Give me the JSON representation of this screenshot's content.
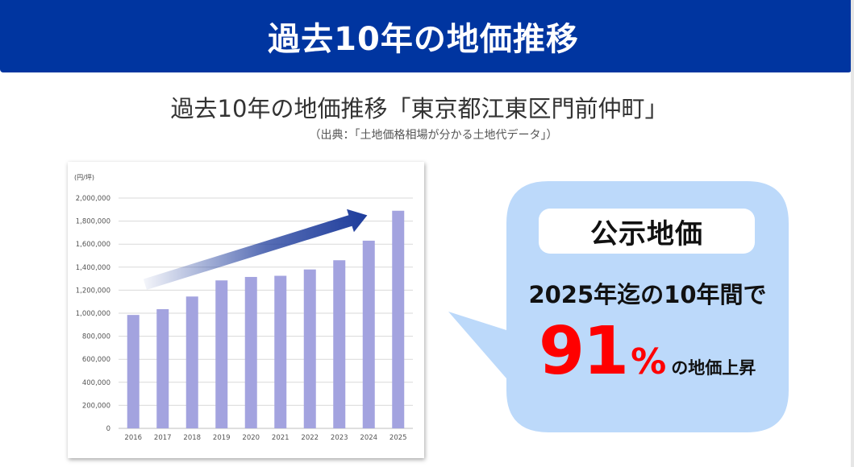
{
  "header": {
    "title": "過去10年の地価推移"
  },
  "subtitle": "過去10年の地価推移「東京都江東区門前仲町」",
  "source": "（出典：「土地価格相場が分かる土地代データ」）",
  "chart_data": {
    "type": "bar",
    "unit_label": "(円/坪)",
    "categories": [
      "2016",
      "2017",
      "2018",
      "2019",
      "2020",
      "2021",
      "2022",
      "2023",
      "2024",
      "2025"
    ],
    "values": [
      985000,
      1035000,
      1145000,
      1285000,
      1315000,
      1325000,
      1380000,
      1460000,
      1630000,
      1890000
    ],
    "ylim": [
      0,
      2000000
    ],
    "yticks": [
      0,
      200000,
      400000,
      600000,
      800000,
      1000000,
      1200000,
      1400000,
      1600000,
      1800000,
      2000000
    ],
    "ytick_labels": [
      "0",
      "200,000",
      "400,000",
      "600,000",
      "800,000",
      "1,000,000",
      "1,200,000",
      "1,400,000",
      "1,600,000",
      "1,800,000",
      "2,000,000"
    ],
    "grid": true,
    "bar_color": "#a3a3df",
    "arrow_color": "#1f3d9c"
  },
  "callout": {
    "badge": "公示地価",
    "line1": "2025年迄の10年間で",
    "value": "91",
    "percent": "%",
    "suffix": "の地価上昇",
    "bubble_color": "#bcd9fa",
    "value_color": "#ff0000"
  }
}
